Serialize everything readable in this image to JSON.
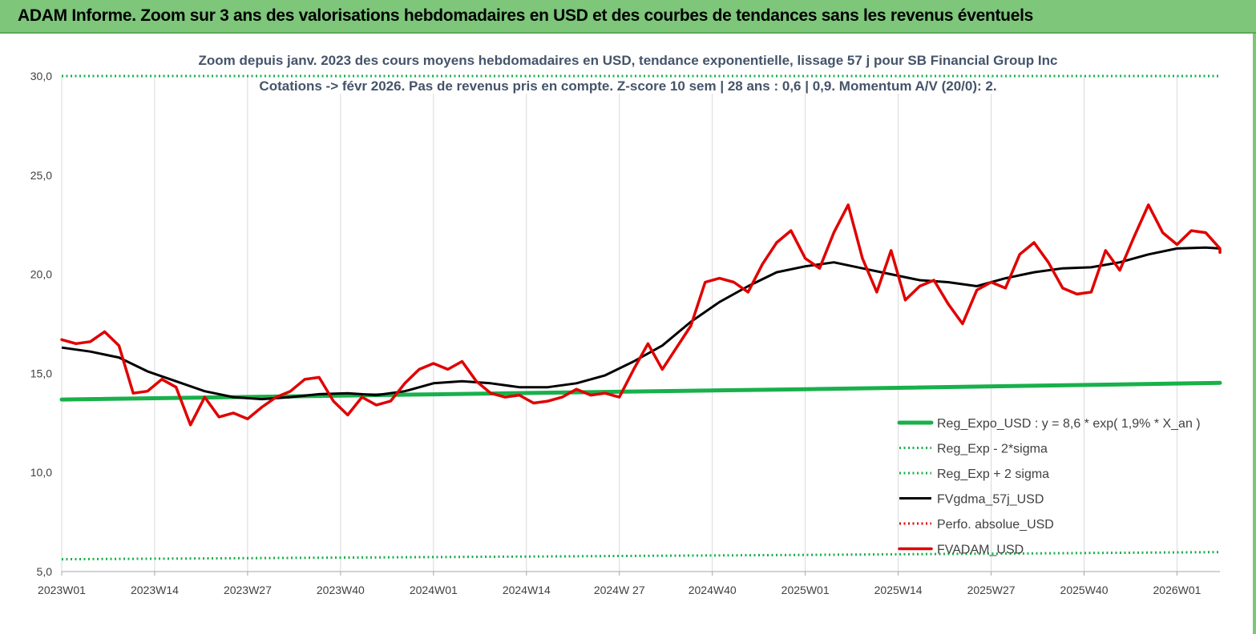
{
  "banner": {
    "title": "ADAM Informe. Zoom sur 3 ans des valorisations hebdomadaires en USD et des courbes de tendances sans les revenus éventuels"
  },
  "chart_data": {
    "type": "line",
    "title": "Zoom depuis janv. 2023 des cours moyens hebdomadaires en USD, tendance exponentielle, lissage 57 j pour SB Financial Group Inc",
    "subtitle": "Cotations -> févr 2026. Pas de revenus pris en compte. Z-score 10 sem | 28 ans : 0,6 | 0,9. Momentum A/V (20/0): 2.",
    "ylim": [
      5,
      30
    ],
    "yticks": [
      "5,0",
      "10,0",
      "15,0",
      "20,0",
      "25,0",
      "30,0"
    ],
    "ytick_values": [
      5,
      10,
      15,
      20,
      25,
      30
    ],
    "xlim": [
      0,
      162
    ],
    "xticks": [
      "2023W01",
      "2023W14",
      "2023W27",
      "2023W40",
      "2024W01",
      "2024W14",
      "2024W 27",
      "2024W40",
      "2025W01",
      "2025W14",
      "2025W27",
      "2025W40",
      "2026W01"
    ],
    "xtick_values": [
      0,
      13,
      26,
      39,
      52,
      65,
      78,
      91,
      104,
      117,
      130,
      143,
      156
    ],
    "grid": "vertical",
    "legend_position": "bottom-right",
    "colors": {
      "reg_expo": "#19b04b",
      "reg_band": "#19b04b",
      "fvgdma": "#000000",
      "perfo": "#e00000",
      "fvadam": "#e00000",
      "grid": "#d9d9d9",
      "axis_text": "#404040"
    },
    "series": [
      {
        "name": "Reg_Expo_USD : y = 8,6 * exp( 1,9% * X_an )",
        "style": "solid-thick",
        "points": [
          [
            0,
            13.68
          ],
          [
            52,
            13.94
          ],
          [
            104,
            14.2
          ],
          [
            165,
            14.52
          ]
        ]
      },
      {
        "name": "Reg_Exp - 2*sigma",
        "style": "dotted",
        "points": [
          [
            0,
            5.62
          ],
          [
            52,
            5.73
          ],
          [
            104,
            5.84
          ],
          [
            165,
            5.98
          ]
        ]
      },
      {
        "name": "Reg_Exp + 2 sigma",
        "style": "dotted",
        "points": [
          [
            0,
            30.0
          ],
          [
            165,
            30.0
          ]
        ]
      },
      {
        "name": "FVgdma_57j_USD",
        "style": "solid",
        "points": [
          [
            0,
            16.3
          ],
          [
            4,
            16.1
          ],
          [
            8,
            15.8
          ],
          [
            12,
            15.1
          ],
          [
            16,
            14.6
          ],
          [
            20,
            14.1
          ],
          [
            24,
            13.8
          ],
          [
            28,
            13.7
          ],
          [
            32,
            13.8
          ],
          [
            36,
            13.95
          ],
          [
            40,
            14.0
          ],
          [
            44,
            13.9
          ],
          [
            48,
            14.1
          ],
          [
            52,
            14.5
          ],
          [
            56,
            14.6
          ],
          [
            60,
            14.5
          ],
          [
            64,
            14.3
          ],
          [
            68,
            14.3
          ],
          [
            72,
            14.5
          ],
          [
            76,
            14.9
          ],
          [
            80,
            15.6
          ],
          [
            84,
            16.4
          ],
          [
            88,
            17.6
          ],
          [
            92,
            18.6
          ],
          [
            96,
            19.4
          ],
          [
            100,
            20.1
          ],
          [
            104,
            20.4
          ],
          [
            108,
            20.6
          ],
          [
            112,
            20.3
          ],
          [
            116,
            20.0
          ],
          [
            120,
            19.7
          ],
          [
            124,
            19.6
          ],
          [
            128,
            19.4
          ],
          [
            132,
            19.8
          ],
          [
            136,
            20.1
          ],
          [
            140,
            20.3
          ],
          [
            144,
            20.35
          ],
          [
            148,
            20.6
          ],
          [
            152,
            21.0
          ],
          [
            156,
            21.3
          ],
          [
            160,
            21.35
          ],
          [
            165,
            21.3
          ]
        ]
      },
      {
        "name": "Perfo. absolue_USD",
        "style": "dotted",
        "points": []
      },
      {
        "name": "FVADAM_USD",
        "style": "solid-thick",
        "points": [
          [
            0,
            16.7
          ],
          [
            2,
            16.5
          ],
          [
            4,
            16.6
          ],
          [
            6,
            17.1
          ],
          [
            8,
            16.4
          ],
          [
            10,
            14.0
          ],
          [
            12,
            14.1
          ],
          [
            14,
            14.7
          ],
          [
            16,
            14.3
          ],
          [
            18,
            12.4
          ],
          [
            20,
            13.8
          ],
          [
            22,
            12.8
          ],
          [
            24,
            13.0
          ],
          [
            26,
            12.7
          ],
          [
            28,
            13.3
          ],
          [
            30,
            13.8
          ],
          [
            32,
            14.1
          ],
          [
            34,
            14.7
          ],
          [
            36,
            14.8
          ],
          [
            38,
            13.6
          ],
          [
            40,
            12.9
          ],
          [
            42,
            13.8
          ],
          [
            44,
            13.4
          ],
          [
            46,
            13.6
          ],
          [
            48,
            14.5
          ],
          [
            50,
            15.2
          ],
          [
            52,
            15.5
          ],
          [
            54,
            15.2
          ],
          [
            56,
            15.6
          ],
          [
            58,
            14.6
          ],
          [
            60,
            14.0
          ],
          [
            62,
            13.8
          ],
          [
            64,
            13.9
          ],
          [
            66,
            13.5
          ],
          [
            68,
            13.6
          ],
          [
            70,
            13.8
          ],
          [
            72,
            14.2
          ],
          [
            74,
            13.9
          ],
          [
            76,
            14.0
          ],
          [
            78,
            13.8
          ],
          [
            80,
            15.2
          ],
          [
            82,
            16.5
          ],
          [
            84,
            15.2
          ],
          [
            86,
            16.3
          ],
          [
            88,
            17.4
          ],
          [
            90,
            19.6
          ],
          [
            92,
            19.8
          ],
          [
            94,
            19.6
          ],
          [
            96,
            19.1
          ],
          [
            98,
            20.5
          ],
          [
            100,
            21.6
          ],
          [
            102,
            22.2
          ],
          [
            104,
            20.8
          ],
          [
            106,
            20.3
          ],
          [
            108,
            22.1
          ],
          [
            110,
            23.5
          ],
          [
            112,
            20.8
          ],
          [
            114,
            19.1
          ],
          [
            116,
            21.2
          ],
          [
            118,
            18.7
          ],
          [
            120,
            19.4
          ],
          [
            122,
            19.7
          ],
          [
            124,
            18.5
          ],
          [
            126,
            17.5
          ],
          [
            128,
            19.2
          ],
          [
            130,
            19.6
          ],
          [
            132,
            19.3
          ],
          [
            134,
            21.0
          ],
          [
            136,
            21.6
          ],
          [
            138,
            20.6
          ],
          [
            140,
            19.3
          ],
          [
            142,
            19.0
          ],
          [
            144,
            19.1
          ],
          [
            146,
            21.2
          ],
          [
            148,
            20.2
          ],
          [
            150,
            21.9
          ],
          [
            152,
            23.5
          ],
          [
            154,
            22.1
          ],
          [
            156,
            21.5
          ],
          [
            158,
            22.2
          ],
          [
            160,
            22.1
          ],
          [
            162,
            21.3
          ],
          [
            164,
            21.1
          ]
        ]
      }
    ]
  }
}
